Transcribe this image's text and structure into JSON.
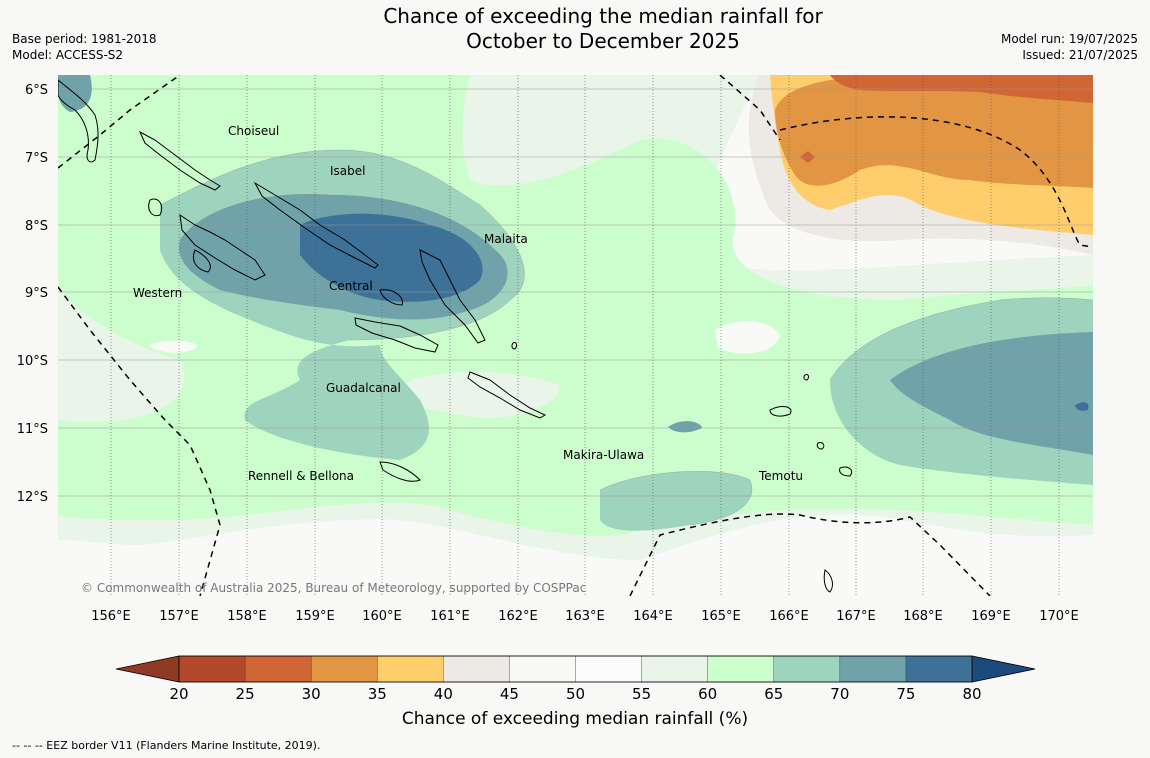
{
  "title_line1": "Chance of exceeding the median rainfall for",
  "title_line2": "October to December 2025",
  "base_period": "Base period: 1981-2018",
  "model": "Model: ACCESS-S2",
  "model_run": "Model run: 19/07/2025",
  "issued": "Issued: 21/07/2025",
  "copyright": "© Commonwealth of Australia 2025, Bureau of Meteorology, supported by COSPPac",
  "colorbar_label": "Chance of exceeding median rainfall (%)",
  "eez_note": "--  --  -- EEZ border V11 (Flanders Marine Institute, 2019).",
  "lat_labels": [
    "6°S",
    "7°S",
    "8°S",
    "9°S",
    "10°S",
    "11°S",
    "12°S"
  ],
  "lon_labels": [
    "156°E",
    "157°E",
    "158°E",
    "159°E",
    "160°E",
    "161°E",
    "162°E",
    "163°E",
    "164°E",
    "165°E",
    "166°E",
    "167°E",
    "168°E",
    "169°E",
    "170°E"
  ],
  "provinces": [
    "Choiseul",
    "Isabel",
    "Malaita",
    "Western",
    "Central",
    "Guadalcanal",
    "Makira-Ulawa",
    "Rennell & Bellona",
    "Temotu"
  ],
  "colorbar_ticks": [
    "20",
    "25",
    "30",
    "35",
    "40",
    "45",
    "50",
    "55",
    "60",
    "65",
    "70",
    "75",
    "80"
  ],
  "colorbar_colors": [
    "#b4482a",
    "#cf6633",
    "#e29643",
    "#fece6c",
    "#ede9e5",
    "#f9faf8",
    "#fbfbfb",
    "#e8f5e8",
    "#ccfdcc",
    "#9ed3be",
    "#6fa2a9",
    "#3d7198"
  ],
  "colorbar_extend_colors": {
    "low": "#8f3a24",
    "high": "#1a4a7e"
  }
}
